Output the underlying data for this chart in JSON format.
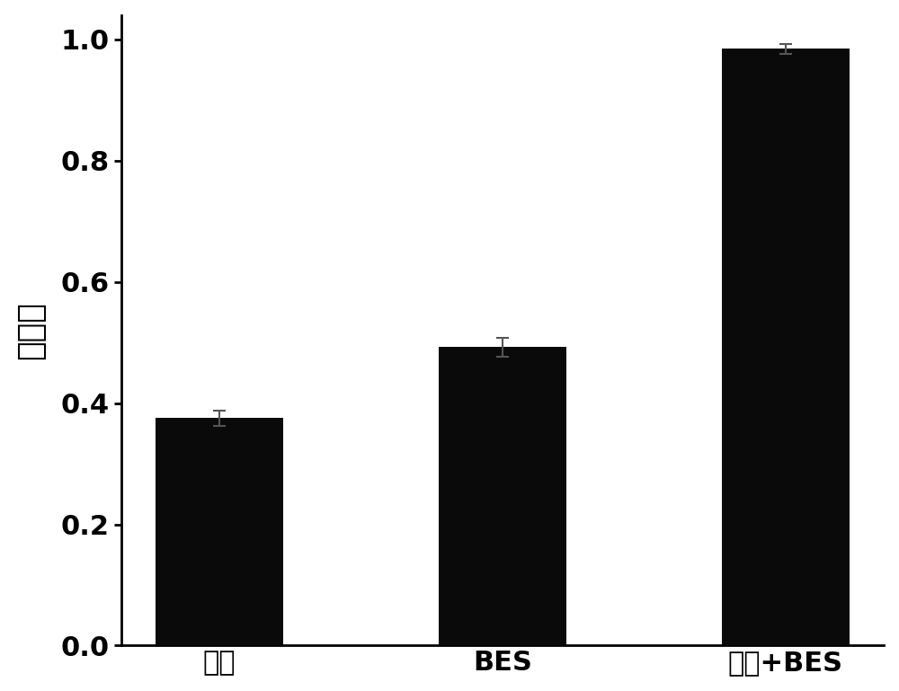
{
  "categories": [
    "光照",
    "BES",
    "光照+BES"
  ],
  "values": [
    0.375,
    0.492,
    0.984
  ],
  "errors": [
    0.012,
    0.015,
    0.008
  ],
  "bar_color": "#0a0a0a",
  "bar_width": 0.45,
  "ylabel": "降解率",
  "ylim": [
    0.0,
    1.04
  ],
  "yticks": [
    0.0,
    0.2,
    0.4,
    0.6,
    0.8,
    1.0
  ],
  "background_color": "#ffffff",
  "ylabel_fontsize": 26,
  "tick_fontsize": 22,
  "xtick_fontsize": 22,
  "error_capsize": 5,
  "error_color": "#555555",
  "error_linewidth": 1.5,
  "spine_linewidth": 2.0
}
